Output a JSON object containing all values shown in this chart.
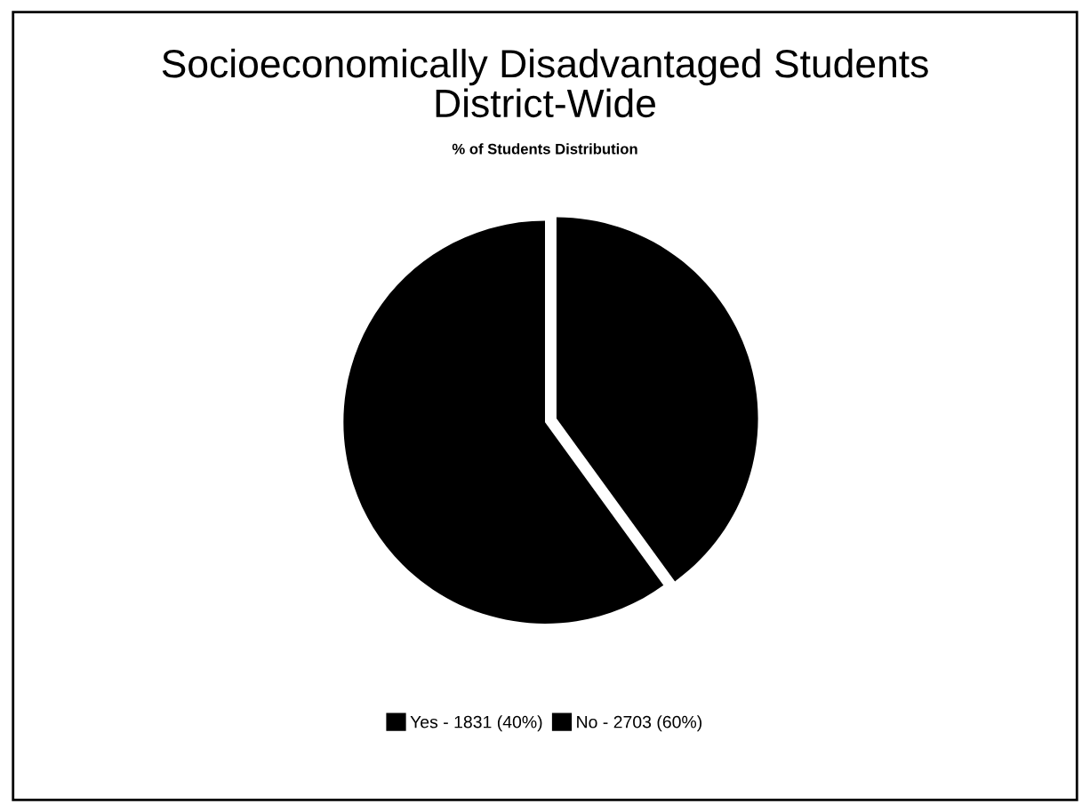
{
  "chart_data": {
    "type": "pie",
    "title": "Socioeconomically Disadvantaged Students\nDistrict-Wide",
    "subtitle": "% of Students Distribution",
    "categories": [
      "Yes - 1831 (40%)",
      "No - 2703 (60%)"
    ],
    "values": [
      40,
      60
    ],
    "colors": [
      "#000000",
      "#000000"
    ],
    "legend": "bottom"
  }
}
